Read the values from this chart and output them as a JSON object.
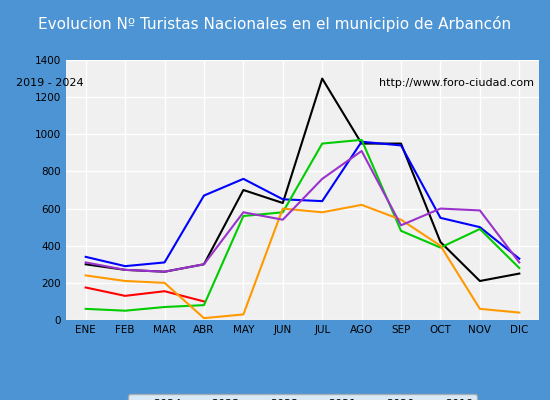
{
  "title": "Evolucion Nº Turistas Nacionales en el municipio de Arbancón",
  "subtitle_left": "2019 - 2024",
  "subtitle_right": "http://www.foro-ciudad.com",
  "months": [
    "ENE",
    "FEB",
    "MAR",
    "ABR",
    "MAY",
    "JUN",
    "JUL",
    "AGO",
    "SEP",
    "OCT",
    "NOV",
    "DIC"
  ],
  "series": {
    "2024": [
      175,
      130,
      155,
      100,
      null,
      null,
      null,
      null,
      null,
      null,
      null,
      null
    ],
    "2023": [
      300,
      270,
      260,
      300,
      700,
      630,
      1300,
      950,
      950,
      420,
      210,
      250
    ],
    "2022": [
      340,
      290,
      310,
      670,
      760,
      650,
      640,
      960,
      940,
      550,
      500,
      330
    ],
    "2021": [
      60,
      50,
      70,
      80,
      560,
      580,
      950,
      970,
      480,
      390,
      490,
      280
    ],
    "2020": [
      240,
      210,
      200,
      10,
      30,
      600,
      580,
      620,
      540,
      400,
      60,
      40
    ],
    "2019": [
      310,
      270,
      260,
      300,
      580,
      540,
      760,
      910,
      510,
      600,
      590,
      310
    ]
  },
  "colors": {
    "2024": "#ff0000",
    "2023": "#000000",
    "2022": "#0000ff",
    "2021": "#00cc00",
    "2020": "#ff9900",
    "2019": "#9933cc"
  },
  "ylim": [
    0,
    1400
  ],
  "yticks": [
    0,
    200,
    400,
    600,
    800,
    1000,
    1200,
    1400
  ],
  "title_bg_color": "#4d94d4",
  "title_text_color": "#ffffff",
  "plot_bg_color": "#f0f0f0",
  "grid_color": "#ffffff",
  "outer_bg_color": "#4d94d4"
}
